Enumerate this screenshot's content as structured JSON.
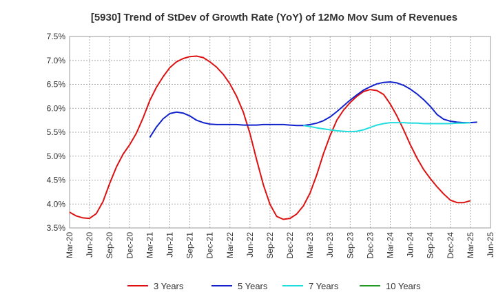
{
  "chart_data": {
    "type": "line",
    "title": "[5930]  Trend of StDev of Growth Rate (YoY) of 12Mo Mov Sum of Revenues",
    "xlabel": "",
    "ylabel": "",
    "ylim": [
      3.5,
      7.5
    ],
    "y_ticks": [
      "3.5%",
      "4.0%",
      "4.5%",
      "5.0%",
      "5.5%",
      "6.0%",
      "6.5%",
      "7.0%",
      "7.5%"
    ],
    "y_tick_values": [
      3.5,
      4.0,
      4.5,
      5.0,
      5.5,
      6.0,
      6.5,
      7.0,
      7.5
    ],
    "x_ticks": [
      "Mar-20",
      "Jun-20",
      "Sep-20",
      "Dec-20",
      "Mar-21",
      "Jun-21",
      "Sep-21",
      "Dec-21",
      "Mar-22",
      "Jun-22",
      "Sep-22",
      "Dec-22",
      "Mar-23",
      "Jun-23",
      "Sep-23",
      "Dec-23",
      "Mar-24",
      "Jun-24",
      "Sep-24",
      "Dec-24",
      "Mar-25",
      "Jun-25"
    ],
    "grid": true,
    "legend_position": "bottom",
    "series": [
      {
        "name": "3 Years",
        "color": "#dd1111",
        "start_index": 0,
        "values": [
          3.83,
          3.75,
          3.71,
          3.7,
          3.8,
          4.05,
          4.43,
          4.77,
          5.04,
          5.24,
          5.48,
          5.8,
          6.16,
          6.44,
          6.66,
          6.85,
          6.97,
          7.04,
          7.08,
          7.09,
          7.06,
          6.97,
          6.86,
          6.71,
          6.51,
          6.25,
          5.92,
          5.47,
          4.92,
          4.4,
          3.99,
          3.74,
          3.68,
          3.7,
          3.79,
          3.96,
          4.23,
          4.61,
          5.05,
          5.43,
          5.75,
          5.96,
          6.12,
          6.25,
          6.35,
          6.39,
          6.37,
          6.29,
          6.09,
          5.84,
          5.55,
          5.24,
          4.96,
          4.72,
          4.53,
          4.36,
          4.21,
          4.08,
          4.03,
          4.03,
          4.07
        ]
      },
      {
        "name": "5 Years",
        "color": "#1122cc",
        "start_index": 12,
        "values": [
          5.39,
          5.61,
          5.78,
          5.89,
          5.92,
          5.9,
          5.84,
          5.75,
          5.7,
          5.67,
          5.66,
          5.66,
          5.66,
          5.66,
          5.65,
          5.65,
          5.65,
          5.66,
          5.66,
          5.66,
          5.66,
          5.65,
          5.64,
          5.64,
          5.66,
          5.69,
          5.74,
          5.82,
          5.93,
          6.05,
          6.17,
          6.28,
          6.38,
          6.45,
          6.51,
          6.54,
          6.55,
          6.53,
          6.48,
          6.4,
          6.3,
          6.18,
          6.04,
          5.87,
          5.77,
          5.73,
          5.71,
          5.7,
          5.7,
          5.71
        ]
      },
      {
        "name": "7 Years",
        "color": "#22dddd",
        "start_index": 35,
        "values": [
          5.64,
          5.62,
          5.59,
          5.57,
          5.55,
          5.53,
          5.52,
          5.51,
          5.52,
          5.55,
          5.6,
          5.65,
          5.68,
          5.7,
          5.7,
          5.7,
          5.69,
          5.69,
          5.68,
          5.68,
          5.68,
          5.68,
          5.68,
          5.69,
          5.69,
          5.7
        ]
      },
      {
        "name": "10 Years",
        "color": "#229922",
        "start_index": 0,
        "values": []
      }
    ]
  }
}
